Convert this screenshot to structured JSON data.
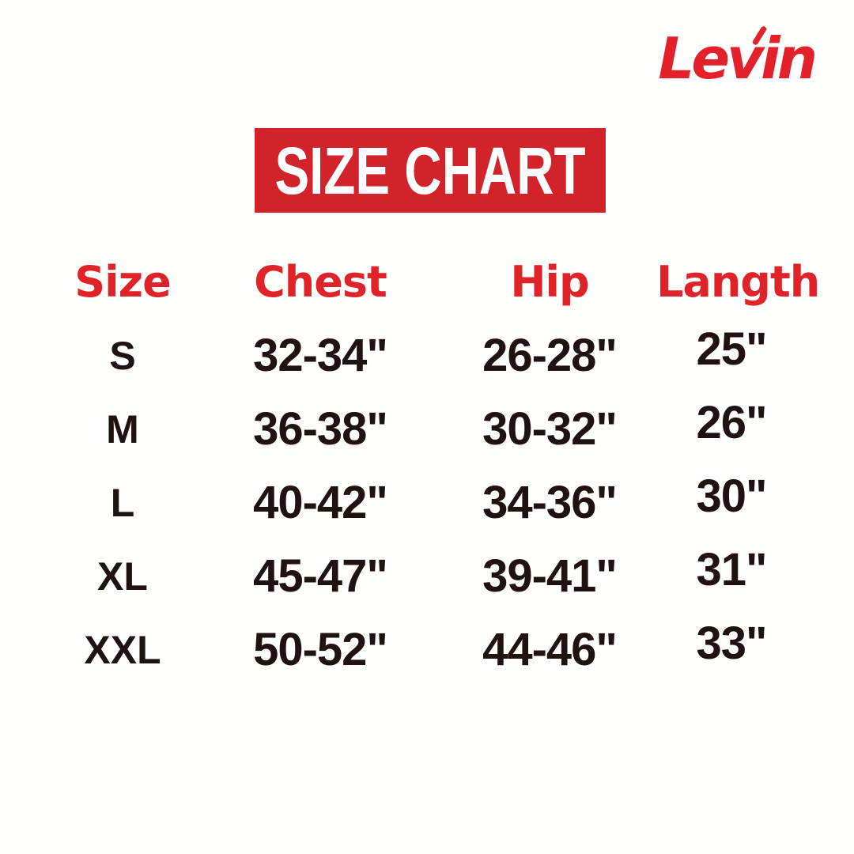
{
  "logo": {
    "text": "Levin"
  },
  "colors": {
    "brand_red": "#e4202a",
    "banner_red": "#d2232a",
    "header_red": "#df2328",
    "text_dark": "#211212",
    "banner_text": "#ffffff",
    "background": "#fffffe"
  },
  "chart_data": {
    "type": "table",
    "title": "SIZE CHART",
    "columns": [
      "Size",
      "Chest",
      "Hip",
      "Langth"
    ],
    "rows": [
      [
        "S",
        "32-34\"",
        "26-28\"",
        "25\""
      ],
      [
        "M",
        "36-38\"",
        "30-32\"",
        "26\""
      ],
      [
        "L",
        "40-42\"",
        "34-36\"",
        "30\""
      ],
      [
        "XL",
        "45-47\"",
        "39-41\"",
        "31\""
      ],
      [
        "XXL",
        "50-52\"",
        "44-46\"",
        "33\""
      ]
    ]
  }
}
